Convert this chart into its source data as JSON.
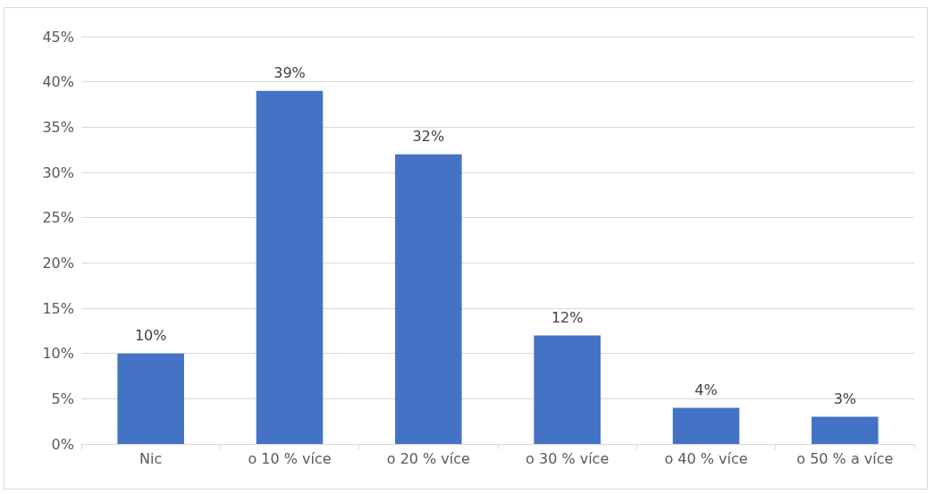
{
  "chart_data": {
    "type": "bar",
    "categories": [
      "Nic",
      "o 10 % více",
      "o 20 % více",
      "o 30 % více",
      "o 40 % více",
      "o 50 % a více"
    ],
    "values": [
      10,
      39,
      32,
      12,
      4,
      3
    ],
    "value_labels": [
      "10%",
      "39%",
      "32%",
      "12%",
      "4%",
      "3%"
    ],
    "color": "#4472c4",
    "ylim": [
      0,
      45
    ],
    "yticks": [
      {
        "value": 0,
        "label": "0%"
      },
      {
        "value": 5,
        "label": "5%"
      },
      {
        "value": 10,
        "label": "10%"
      },
      {
        "value": 15,
        "label": "15%"
      },
      {
        "value": 20,
        "label": "20%"
      },
      {
        "value": 25,
        "label": "25%"
      },
      {
        "value": 30,
        "label": "30%"
      },
      {
        "value": 35,
        "label": "35%"
      },
      {
        "value": 40,
        "label": "40%"
      },
      {
        "value": 45,
        "label": "45%"
      }
    ],
    "grid": "y"
  }
}
